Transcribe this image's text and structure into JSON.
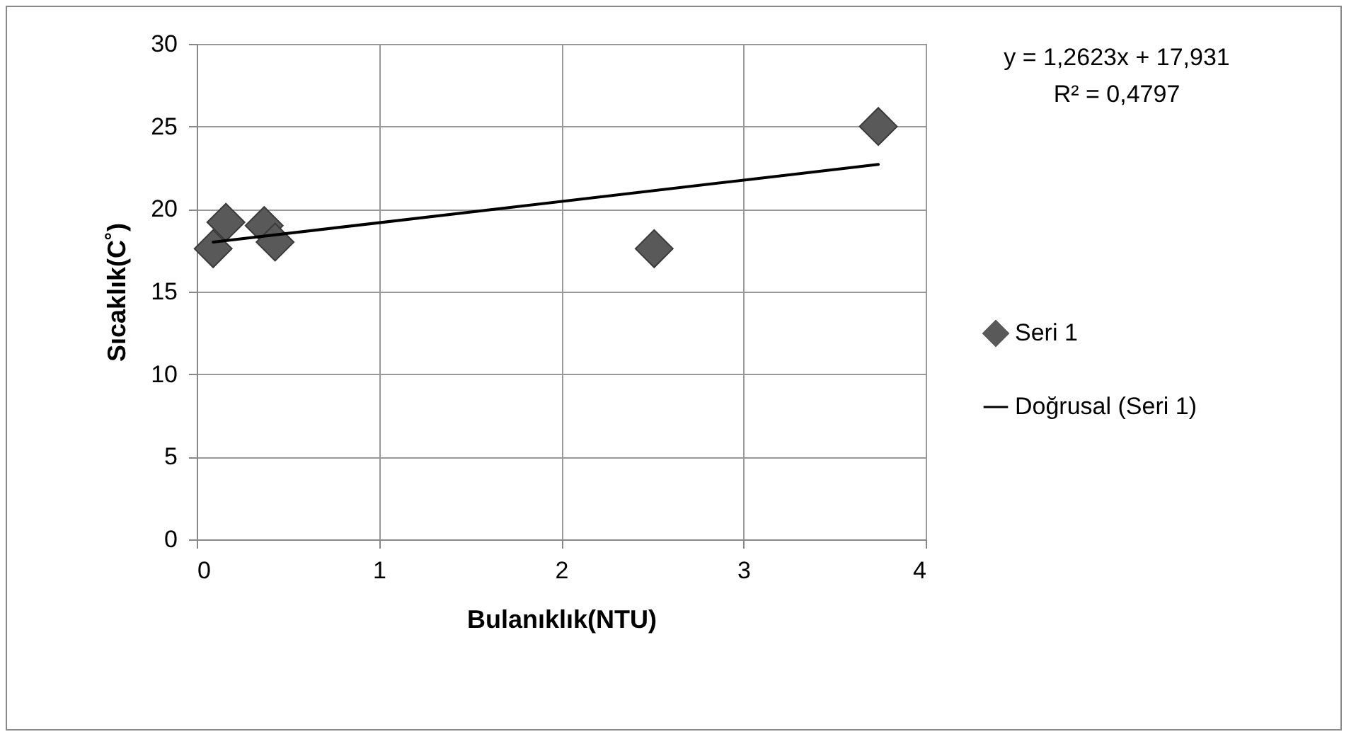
{
  "chart_data": {
    "type": "scatter",
    "xlabel": "Bulanıklık(NTU)",
    "ylabel": "Sıcaklık(C˚)",
    "xlim": [
      0,
      4
    ],
    "xticks": [
      0,
      1,
      2,
      3,
      4
    ],
    "ylim": [
      0,
      30
    ],
    "yticks": [
      0,
      5,
      10,
      15,
      20,
      25,
      30
    ],
    "grid": true,
    "legend": "right",
    "annotations": [
      "y = 1,2623x + 17,931",
      "R² = 0,4797"
    ],
    "series": [
      {
        "name": "Seri 1",
        "color": "#595959",
        "marker": "diamond",
        "x": [
          0.09,
          0.16,
          0.37,
          0.43,
          2.51,
          3.74
        ],
        "values": [
          17.6,
          19.2,
          19.0,
          18.0,
          17.6,
          25.0
        ]
      },
      {
        "name": "Doğrusal (Seri 1)",
        "type": "line",
        "color": "#000000",
        "x": [
          0.09,
          3.74
        ],
        "values": [
          18.0,
          22.7
        ]
      }
    ]
  }
}
